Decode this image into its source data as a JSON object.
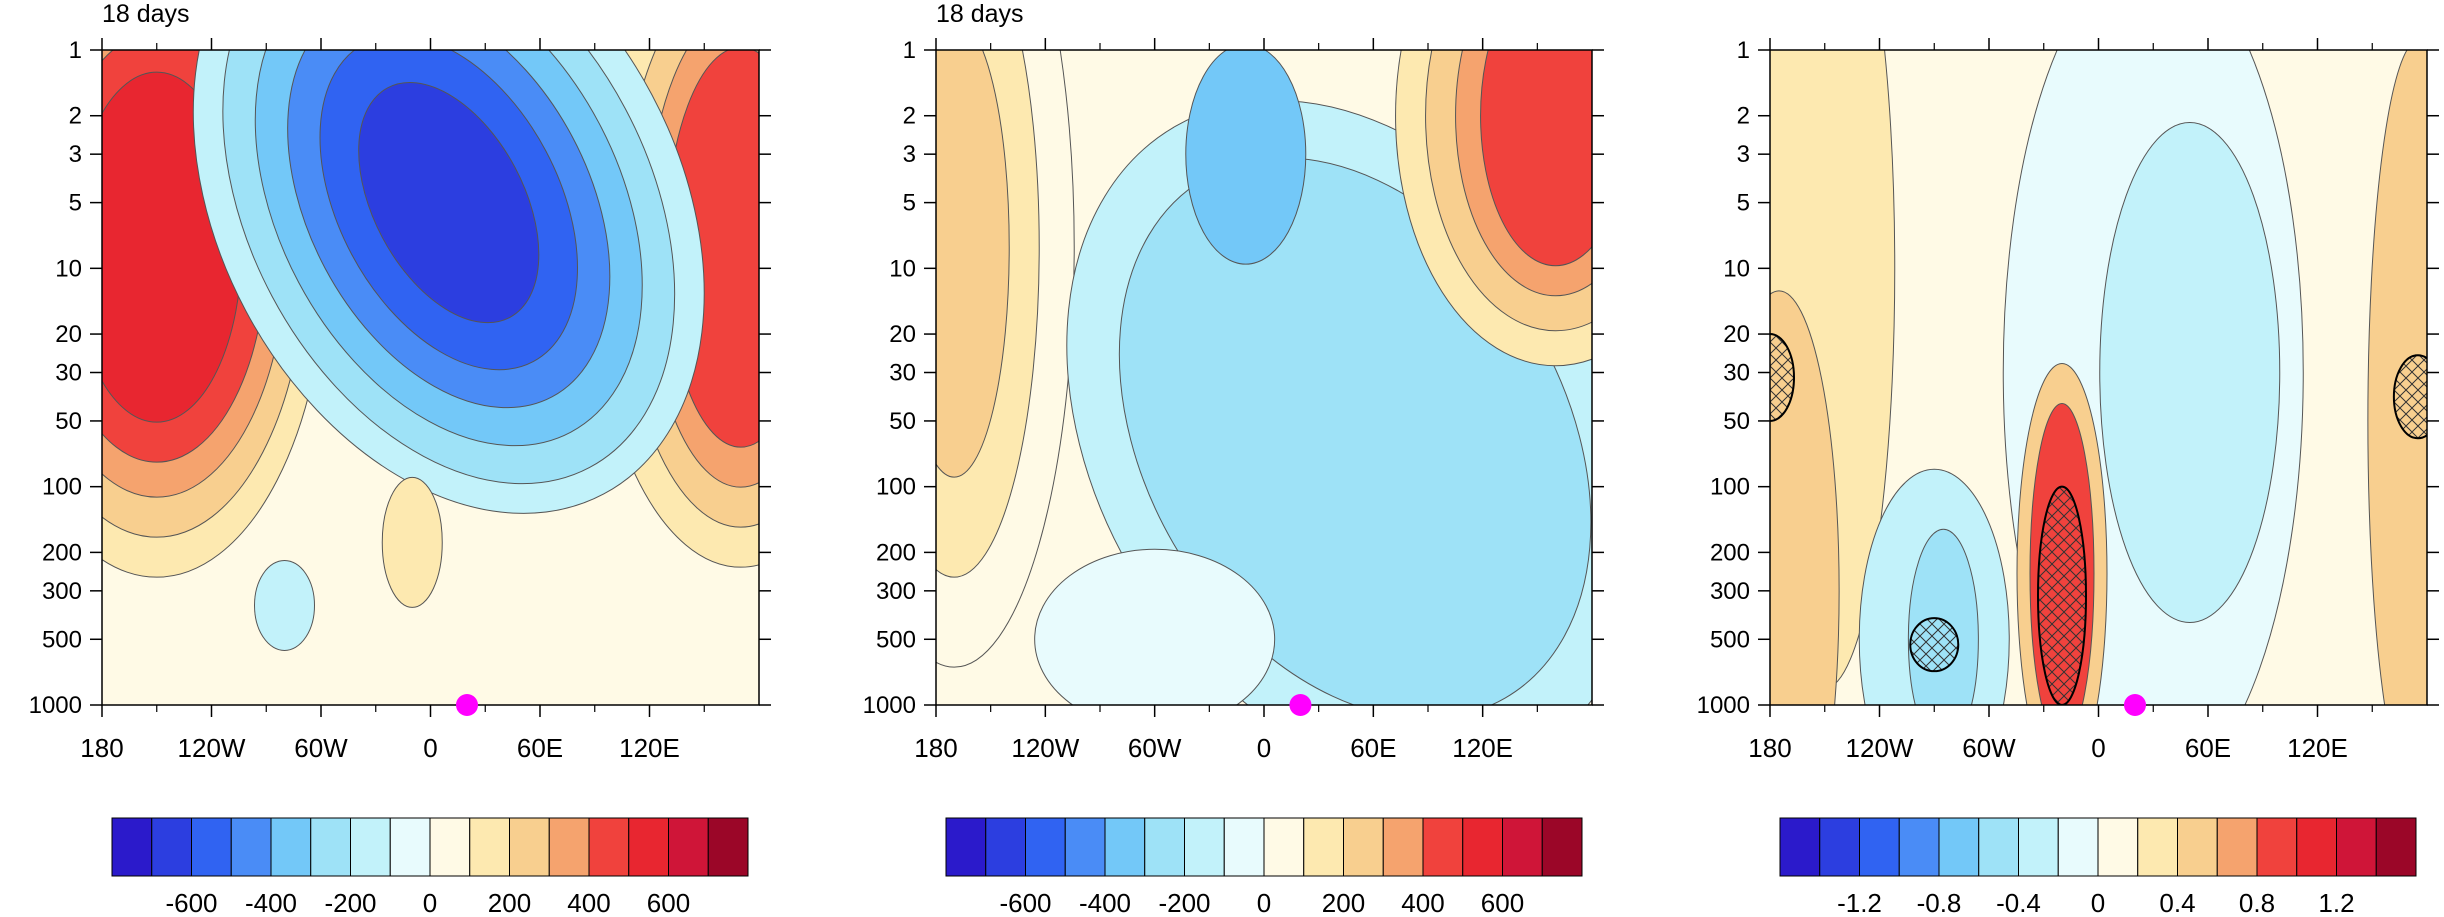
{
  "chart_data": [
    {
      "type": "heatmap",
      "title": "18 days",
      "x_ticks": [
        "180",
        "120W",
        "60W",
        "0",
        "60E",
        "120E"
      ],
      "x_tick_values": [
        -180,
        -120,
        -60,
        0,
        60,
        120
      ],
      "xlim": [
        -180,
        180
      ],
      "y_ticks": [
        "1",
        "2",
        "3",
        "5",
        "10",
        "20",
        "30",
        "50",
        "100",
        "200",
        "300",
        "500",
        "1000"
      ],
      "y_tick_values": [
        1,
        2,
        3,
        5,
        10,
        20,
        30,
        50,
        100,
        200,
        300,
        500,
        1000
      ],
      "ylim": [
        1000,
        1
      ],
      "y_scale": "log",
      "levels": [
        -700,
        -600,
        -500,
        -400,
        -300,
        -200,
        -100,
        0,
        100,
        200,
        300,
        400,
        500,
        600,
        700
      ],
      "colorbar_labels": [
        "-600",
        "-400",
        "-200",
        "0",
        "200",
        "400",
        "600"
      ],
      "colorbar_label_values": [
        -600,
        -400,
        -200,
        0,
        200,
        400,
        600
      ],
      "features": [
        {
          "kind": "positive",
          "lon": -150,
          "p": 8,
          "value": 600
        },
        {
          "kind": "negative",
          "lon": 10,
          "p": 5,
          "value": -500
        },
        {
          "kind": "positive",
          "lon": 170,
          "p": 8,
          "value": 550
        },
        {
          "kind": "negative",
          "lon": -80,
          "p": 350,
          "value": -180
        },
        {
          "kind": "positive",
          "lon": -10,
          "p": 180,
          "value": 120
        }
      ],
      "marker": {
        "lon": 20,
        "p": 1000,
        "color": "#ff00ff"
      }
    },
    {
      "type": "heatmap",
      "title": "18 days",
      "x_ticks": [
        "180",
        "120W",
        "60W",
        "0",
        "60E",
        "120E"
      ],
      "x_tick_values": [
        -180,
        -120,
        -60,
        0,
        60,
        120
      ],
      "xlim": [
        -180,
        180
      ],
      "y_ticks": [
        "1",
        "2",
        "3",
        "5",
        "10",
        "20",
        "30",
        "50",
        "100",
        "200",
        "300",
        "500",
        "1000"
      ],
      "y_tick_values": [
        1,
        2,
        3,
        5,
        10,
        20,
        30,
        50,
        100,
        200,
        300,
        500,
        1000
      ],
      "ylim": [
        1000,
        1
      ],
      "y_scale": "log",
      "levels": [
        -700,
        -600,
        -500,
        -400,
        -300,
        -200,
        -100,
        0,
        100,
        200,
        300,
        400,
        500,
        600,
        700
      ],
      "colorbar_labels": [
        "-600",
        "-400",
        "-200",
        "0",
        "200",
        "400",
        "600"
      ],
      "colorbar_label_values": [
        -600,
        -400,
        -200,
        0,
        200,
        400,
        600
      ],
      "features": [
        {
          "kind": "positive",
          "lon": -170,
          "p": 8,
          "value": 300
        },
        {
          "kind": "negative",
          "lon": -10,
          "p": 3,
          "value": -350
        },
        {
          "kind": "positive",
          "lon": 160,
          "p": 2,
          "value": 550
        },
        {
          "kind": "negative",
          "lon": 50,
          "p": 60,
          "value": -220
        }
      ],
      "marker": {
        "lon": 20,
        "p": 1000,
        "color": "#ff00ff"
      }
    },
    {
      "type": "heatmap",
      "x_ticks": [
        "180",
        "120W",
        "60W",
        "0",
        "60E",
        "120E"
      ],
      "x_tick_values": [
        -180,
        -120,
        -60,
        0,
        60,
        120
      ],
      "xlim": [
        -180,
        180
      ],
      "y_ticks": [
        "1",
        "2",
        "3",
        "5",
        "10",
        "20",
        "30",
        "50",
        "100",
        "200",
        "300",
        "500",
        "1000"
      ],
      "y_tick_values": [
        1,
        2,
        3,
        5,
        10,
        20,
        30,
        50,
        100,
        200,
        300,
        500,
        1000
      ],
      "ylim": [
        1000,
        1
      ],
      "y_scale": "log",
      "levels": [
        -1.4,
        -1.2,
        -1.0,
        -0.8,
        -0.6,
        -0.4,
        -0.2,
        0,
        0.2,
        0.4,
        0.6,
        0.8,
        1.0,
        1.2,
        1.4
      ],
      "colorbar_labels": [
        "-1.2",
        "-0.8",
        "-0.4",
        "0",
        "0.4",
        "0.8",
        "1.2"
      ],
      "colorbar_label_values": [
        -1.2,
        -0.8,
        -0.4,
        0,
        0.4,
        0.8,
        1.2
      ],
      "hatched_regions": [
        {
          "lon": -20,
          "p_top": 100,
          "p_bottom": 1000
        },
        {
          "lon": -90,
          "p_top": 400,
          "p_bottom": 700
        },
        {
          "lon": -180,
          "p_top": 20,
          "p_bottom": 50
        },
        {
          "lon": 175,
          "p_top": 25,
          "p_bottom": 60
        }
      ],
      "marker": {
        "lon": 20,
        "p": 1000,
        "color": "#ff00ff"
      }
    }
  ],
  "colors": {
    "palette": [
      "#2b1acb",
      "#2c3ee0",
      "#3063f2",
      "#4a8cf6",
      "#73c8f8",
      "#9ee2f7",
      "#c2f2fa",
      "#e8fbfd",
      "#fffae6",
      "#fde9b0",
      "#f8cf8f",
      "#f5a36e",
      "#f0423d",
      "#e82630",
      "#cf1538",
      "#9b0628"
    ],
    "marker": "#ff00ff"
  }
}
